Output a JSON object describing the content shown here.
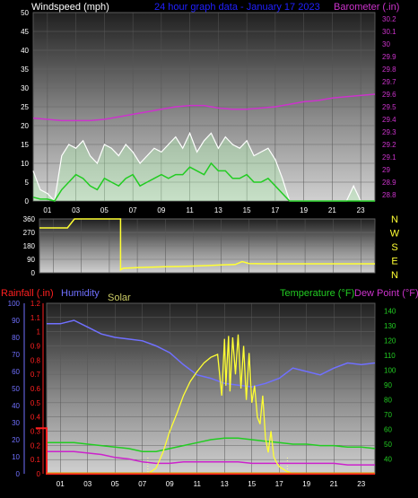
{
  "header": {
    "left_label": "Windspeed (mph)",
    "center_label": "24 hour graph data - January 17 2023",
    "right_label": "Barometer (.in)"
  },
  "direction_letters": [
    "N",
    "W",
    "S",
    "E",
    "N"
  ],
  "bottom_labels": {
    "rainfall": "Rainfall (.in)",
    "humidity": "Humidity",
    "solar": "Solar",
    "temperature": "Temperature (°F)",
    "dewpoint": "Dew Point (°F)"
  },
  "colors": {
    "wind_gust": "#ffffff",
    "wind_avg": "#22cc22",
    "wind_fill": "#b8ffb8",
    "barometer": "#cc33cc",
    "direction": "#ffff33",
    "rainfall": "#ff2020",
    "humidity": "#7070ff",
    "solar": "#ffff33",
    "temperature": "#22cc22",
    "dewpoint": "#cc22cc",
    "label_blue": "#2020ff"
  },
  "chart_data": [
    {
      "type": "line",
      "name": "wind_barometer",
      "x_ticks": [
        "01",
        "03",
        "05",
        "07",
        "09",
        "11",
        "13",
        "15",
        "17",
        "19",
        "21",
        "23"
      ],
      "y_left_ticks": [
        "0",
        "5",
        "10",
        "15",
        "20",
        "25",
        "30",
        "35",
        "40",
        "45",
        "50"
      ],
      "y_left_range": [
        0,
        50
      ],
      "y_right_ticks": [
        "28.8",
        "28.9",
        "29",
        "29.1",
        "29.2",
        "29.3",
        "29.4",
        "29.5",
        "29.6",
        "29.7",
        "29.8",
        "29.9",
        "30",
        "30.1",
        "30.2"
      ],
      "y_right_range": [
        28.75,
        30.25
      ],
      "series": [
        {
          "key": "barometer",
          "axis": "right",
          "x": [
            0,
            1,
            2,
            3,
            4,
            5,
            6,
            7,
            8,
            9,
            10,
            11,
            12,
            13,
            14,
            15,
            16,
            17,
            18,
            19,
            20,
            21,
            22,
            23,
            24
          ],
          "y": [
            29.41,
            29.4,
            29.39,
            29.39,
            29.39,
            29.4,
            29.42,
            29.44,
            29.46,
            29.48,
            29.5,
            29.51,
            29.51,
            29.49,
            29.48,
            29.48,
            29.49,
            29.5,
            29.52,
            29.54,
            29.55,
            29.57,
            29.58,
            29.59,
            29.6
          ]
        },
        {
          "key": "wind_gust",
          "axis": "left",
          "x": [
            0,
            0.5,
            1,
            1.5,
            2,
            2.5,
            3,
            3.5,
            4,
            4.5,
            5,
            5.5,
            6,
            6.5,
            7,
            7.5,
            8,
            8.5,
            9,
            9.5,
            10,
            10.5,
            11,
            11.5,
            12,
            12.5,
            13,
            13.5,
            14,
            14.5,
            15,
            15.5,
            16,
            16.5,
            17,
            17.5,
            18,
            19,
            20,
            21,
            22,
            22.5,
            23,
            24
          ],
          "y": [
            8,
            3,
            2,
            0,
            12,
            15,
            14,
            16,
            12,
            10,
            15,
            14,
            12,
            15,
            13,
            10,
            12,
            14,
            13,
            15,
            17,
            14,
            18,
            13,
            16,
            18,
            14,
            17,
            15,
            14,
            16,
            12,
            13,
            14,
            11,
            6,
            0,
            0,
            0,
            0,
            0,
            4,
            0,
            0
          ]
        },
        {
          "key": "wind_avg",
          "axis": "left",
          "x": [
            0,
            0.5,
            1,
            1.5,
            2,
            2.5,
            3,
            3.5,
            4,
            4.5,
            5,
            5.5,
            6,
            6.5,
            7,
            7.5,
            8,
            8.5,
            9,
            9.5,
            10,
            10.5,
            11,
            11.5,
            12,
            12.5,
            13,
            13.5,
            14,
            14.5,
            15,
            15.5,
            16,
            16.5,
            17,
            17.5,
            18,
            19,
            20,
            21,
            22,
            23,
            24
          ],
          "y": [
            1,
            0.5,
            0.5,
            0,
            3,
            5,
            7,
            6,
            4,
            3,
            6,
            5,
            4,
            6,
            7,
            4,
            5,
            6,
            7,
            6,
            7,
            7,
            9,
            8,
            7,
            10,
            8,
            8,
            6,
            6,
            7,
            5,
            5,
            6,
            4,
            2,
            0,
            0,
            0,
            0,
            0,
            0,
            0
          ]
        }
      ]
    },
    {
      "type": "line",
      "name": "wind_direction",
      "x_ticks": [
        "01",
        "03",
        "05",
        "07",
        "09",
        "11",
        "13",
        "15",
        "17",
        "19",
        "21",
        "23"
      ],
      "y_ticks": [
        "0",
        "90",
        "180",
        "270",
        "360"
      ],
      "y_range": [
        0,
        360
      ],
      "series": [
        {
          "key": "direction",
          "x": [
            0,
            2,
            2.5,
            5,
            5.8,
            5.8,
            6,
            7,
            8,
            9,
            10,
            11,
            12,
            13,
            14,
            14.5,
            15,
            16,
            17,
            18,
            19,
            20,
            21,
            22,
            23,
            24
          ],
          "y": [
            300,
            300,
            360,
            360,
            360,
            20,
            30,
            35,
            38,
            40,
            42,
            45,
            48,
            52,
            55,
            75,
            62,
            60,
            60,
            60,
            60,
            60,
            60,
            60,
            60,
            60
          ]
        }
      ]
    },
    {
      "type": "line",
      "name": "temp_humidity_rain_solar",
      "x_ticks": [
        "01",
        "03",
        "05",
        "07",
        "09",
        "11",
        "13",
        "15",
        "17",
        "19",
        "21",
        "23"
      ],
      "y_left_ticks": [
        "0",
        "0.1",
        "0.2",
        "0.3",
        "0.4",
        "0.5",
        "0.6",
        "0.7",
        "0.8",
        "0.9",
        "1",
        "1.1",
        "1.2"
      ],
      "y_left_range": [
        0,
        1.2
      ],
      "humidity_ticks": [
        "0",
        "10",
        "20",
        "30",
        "40",
        "50",
        "60",
        "70",
        "80",
        "90",
        "100"
      ],
      "humidity_range": [
        0,
        100
      ],
      "y_right_ticks": [
        "40",
        "50",
        "60",
        "70",
        "80",
        "90",
        "100",
        "110",
        "120",
        "130",
        "140"
      ],
      "y_right_range": [
        30,
        145
      ],
      "series": [
        {
          "key": "rainfall",
          "axis": "left",
          "x": [
            -0.8,
            0,
            0,
            24
          ],
          "y": [
            0.32,
            0.32,
            0,
            0
          ]
        },
        {
          "key": "humidity",
          "axis": "humidity",
          "x": [
            0,
            1,
            2,
            3,
            4,
            5,
            6,
            7,
            8,
            9,
            10,
            11,
            12,
            13,
            14,
            15,
            16,
            17,
            18,
            19,
            20,
            21,
            22,
            23,
            24
          ],
          "y": [
            88,
            88,
            90,
            86,
            82,
            80,
            79,
            78,
            75,
            71,
            64,
            58,
            56,
            53,
            52,
            51,
            53,
            56,
            62,
            60,
            58,
            62,
            65,
            64,
            65
          ]
        },
        {
          "key": "temperature",
          "axis": "right",
          "x": [
            0,
            1,
            2,
            3,
            4,
            5,
            6,
            7,
            8,
            9,
            10,
            11,
            12,
            13,
            14,
            15,
            16,
            17,
            18,
            19,
            20,
            21,
            22,
            23,
            24
          ],
          "y": [
            51,
            51,
            51,
            50,
            49,
            48,
            47,
            45,
            45,
            47,
            49,
            51,
            53,
            54,
            54,
            53,
            52,
            51,
            50,
            50,
            49,
            49,
            48,
            48,
            47
          ]
        },
        {
          "key": "dewpoint",
          "axis": "right",
          "x": [
            0,
            1,
            2,
            3,
            4,
            5,
            6,
            7,
            8,
            9,
            10,
            11,
            12,
            13,
            14,
            15,
            16,
            17,
            18,
            19,
            20,
            21,
            22,
            23,
            24
          ],
          "y": [
            45,
            45,
            45,
            44,
            43,
            41,
            40,
            38,
            37,
            37,
            38,
            38,
            38,
            38,
            38,
            37,
            37,
            37,
            37,
            37,
            37,
            37,
            36,
            36,
            36
          ]
        },
        {
          "key": "solar",
          "axis": "left",
          "x": [
            0,
            6,
            7,
            7.4,
            8,
            8.5,
            9,
            9.5,
            10,
            10.5,
            11,
            11.5,
            12,
            12.5,
            12.8,
            13,
            13.1,
            13.3,
            13.4,
            13.6,
            13.8,
            14,
            14.2,
            14.4,
            14.6,
            14.8,
            15,
            15.2,
            15.4,
            15.6,
            15.8,
            16,
            16.2,
            16.4,
            16.6,
            16.8,
            17,
            17.5,
            18,
            24
          ],
          "y": [
            0,
            0,
            0,
            0,
            0.04,
            0.15,
            0.3,
            0.42,
            0.55,
            0.65,
            0.72,
            0.78,
            0.82,
            0.84,
            0.55,
            0.95,
            0.62,
            0.97,
            0.58,
            0.96,
            0.7,
            0.98,
            0.6,
            0.9,
            0.52,
            0.85,
            0.5,
            0.62,
            0.4,
            0.35,
            0.55,
            0.25,
            0.15,
            0.3,
            0.12,
            0.08,
            0.05,
            0.02,
            0,
            0
          ]
        }
      ]
    }
  ]
}
